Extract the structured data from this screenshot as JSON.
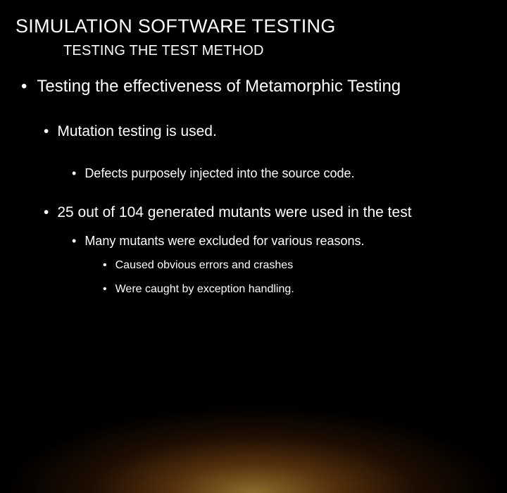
{
  "title": "SIMULATION SOFTWARE TESTING",
  "subtitle": "TESTING THE TEST METHOD",
  "bullets": {
    "l1_0": "Testing the effectiveness of Metamorphic Testing",
    "l2_0": "Mutation testing is used.",
    "l3_0": "Defects purposely injected into the source code.",
    "l2_1": "25 out of 104 generated mutants were used in the test",
    "l3_1": "Many mutants were excluded for various reasons.",
    "l4_0": "Caused obvious errors and crashes",
    "l4_1": "Were caught by exception handling."
  },
  "colors": {
    "background": "#000000",
    "text": "#ffffff",
    "glow_inner": "#f5b742",
    "glow_mid": "#8a4a10"
  },
  "typography": {
    "title_fontsize": 27,
    "subtitle_fontsize": 20,
    "l1_fontsize": 24,
    "l2_fontsize": 21,
    "l3_fontsize": 18,
    "l4_fontsize": 16,
    "font_family": "Arial"
  }
}
